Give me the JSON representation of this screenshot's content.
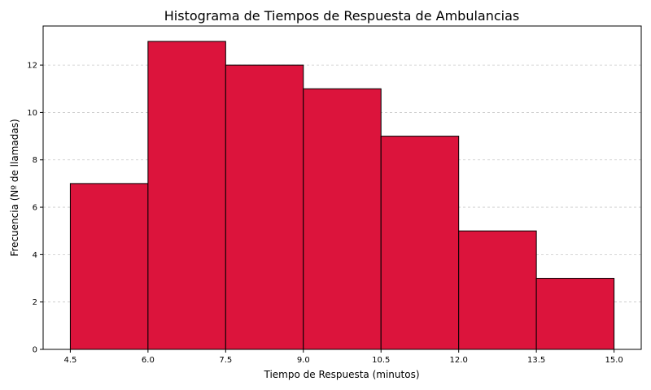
{
  "chart_data": {
    "type": "bar",
    "title": "Histograma de Tiempos de Respuesta de Ambulancias",
    "xlabel": "Tiempo de Respuesta (minutos)",
    "ylabel": "Frecuencia (Nº de llamadas)",
    "bins": [
      {
        "start": 4.5,
        "end": 6.0,
        "count": 7
      },
      {
        "start": 6.0,
        "end": 7.5,
        "count": 13
      },
      {
        "start": 7.5,
        "end": 9.0,
        "count": 12
      },
      {
        "start": 9.0,
        "end": 10.5,
        "count": 11
      },
      {
        "start": 10.5,
        "end": 12.0,
        "count": 9
      },
      {
        "start": 12.0,
        "end": 13.5,
        "count": 5
      },
      {
        "start": 13.5,
        "end": 15.0,
        "count": 3
      }
    ],
    "x_ticks": [
      "4.5",
      "6.0",
      "7.5",
      "9.0",
      "10.5",
      "12.0",
      "13.5",
      "15.0"
    ],
    "y_ticks": [
      "0",
      "2",
      "4",
      "6",
      "8",
      "10",
      "12"
    ],
    "xlim": [
      3.975,
      15.525
    ],
    "ylim": [
      0,
      13.65
    ],
    "grid": "y-dashed",
    "bar_color": "#dc143c",
    "edge_color": "#000000"
  }
}
